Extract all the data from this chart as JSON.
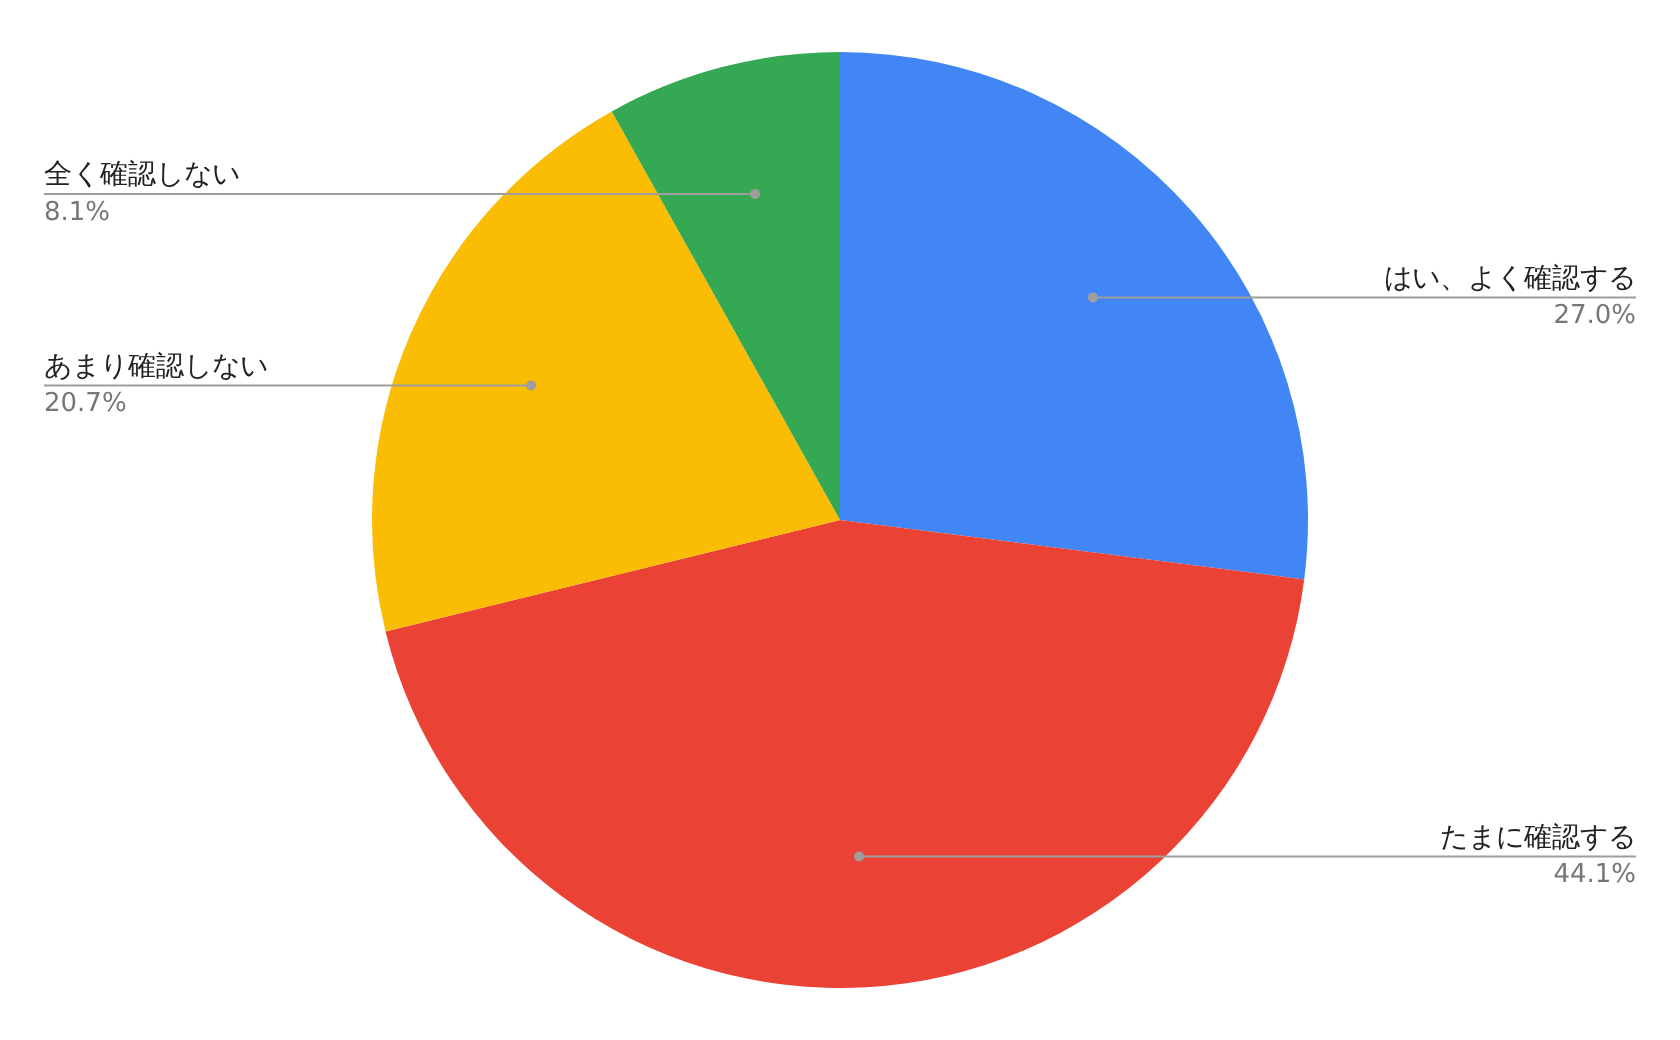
{
  "chart_data": {
    "type": "pie",
    "categories": [
      "はい、よく確認する",
      "たまに確認する",
      "あまり確認しない",
      "全く確認しない"
    ],
    "values": [
      27.0,
      44.1,
      20.7,
      8.1
    ],
    "colors": [
      "#4285f4",
      "#ea4335",
      "#fbbc04",
      "#34a853"
    ],
    "value_labels": [
      "27.0%",
      "44.1%",
      "20.7%",
      "8.1%"
    ],
    "legend": false
  }
}
